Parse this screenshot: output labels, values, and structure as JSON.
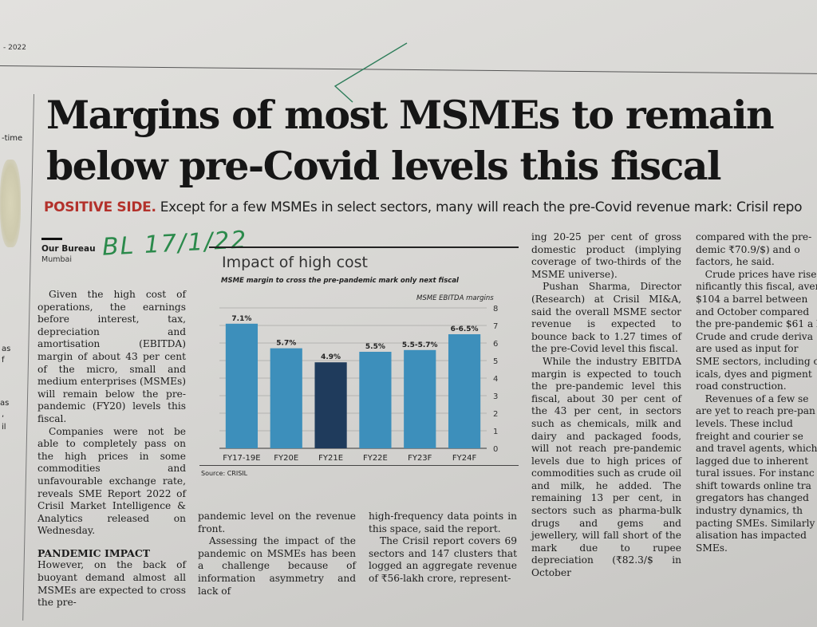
{
  "page": {
    "date_fragment": "- 2022",
    "side_words": [
      "-time",
      "as",
      "f",
      "as",
      ",",
      "il"
    ],
    "handwritten_note": "BL 17/1/22"
  },
  "article": {
    "headline_lines": [
      "Margins of most MSMEs to remain",
      "below pre-Covid levels this fiscal"
    ],
    "deck_kicker": "POSITIVE SIDE.",
    "deck_text": " Except for a few MSMEs in select sectors, many will reach the pre-Covid revenue mark: Crisil repo",
    "byline": "Our Bureau",
    "dateline": "Mumbai",
    "col1": {
      "paragraphs": [
        "Given the high cost of operations, the earnings before interest, tax, depreciation and amortisation (EBITDA) margin of about 43 per cent of the micro, small and medium enterprises (MSMEs) will remain below the pre-pandemic (FY20) levels this fiscal.",
        "Companies were not be able to completely pass on the high prices in some commodities and unfavourable exchange rate, reveals SME Report 2022 of Crisil Market Intelligence & Analytics released on Wednesday."
      ],
      "subhead": "PANDEMIC IMPACT",
      "after_subhead": "However, on the back of buoyant demand almost all MSMEs are expected to cross the pre-"
    },
    "col2": {
      "paragraphs": [
        "pandemic level on the revenue front.",
        "Assessing the impact of the pandemic on MSMEs has been a challenge because of information asymmetry and lack of"
      ]
    },
    "col3": {
      "paragraphs": [
        "high-frequency data points in this space, said the report.",
        "The Crisil report covers 69 sectors and 147 clusters that logged an aggregate revenue of ₹56-lakh crore, represent-"
      ]
    },
    "col4": {
      "paragraphs": [
        "ing 20-25 per cent of gross domestic product (implying coverage of two-thirds of the MSME universe).",
        "Pushan Sharma, Director (Research) at Crisil MI&A, said the overall MSME sector revenue is expected to bounce back to 1.27 times of the pre-Covid level this fiscal.",
        "While the industry EBITDA margin is expected to touch the pre-pandemic level this fiscal, about 30 per cent of the 43 per cent, in sectors such as chemicals, milk and dairy and packaged foods, will not reach pre-pandemic levels due to high prices of commodities such as crude oil and milk, he added. The remaining 13 per cent, in sectors such as pharma-bulk drugs and gems and jewellery, will fall short of the mark due to rupee depreciation (₹82.3/$ in October"
      ]
    },
    "col5": {
      "lines": [
        "compared with the pre-",
        "demic ₹70.9/$) and o",
        "factors, he said.",
        "   Crude prices have risen",
        "nificantly this fiscal, avera",
        "$104 a barrel between",
        "and October compared",
        "the pre-pandemic $61 a b",
        "Crude and crude deriva",
        "are used as input for",
        "SME sectors, including c",
        "icals, dyes and pigment",
        "road construction.",
        "   Revenues of a few se",
        "are yet to reach pre-pan",
        "levels. These includ",
        "freight and courier se",
        "and travel agents, which",
        "lagged due to inherent",
        "tural issues. For instanc",
        "shift towards online tra",
        "gregators has changed",
        "industry dynamics, th",
        "pacting SMEs. Similarly",
        "alisation has impacted",
        "SMEs."
      ]
    }
  },
  "chart_data": {
    "type": "bar",
    "title": "Impact of high cost",
    "subtitle": "MSME margin to cross the pre-pandemic mark only next fiscal",
    "ylabel": "MSME EBITDA margins",
    "xlabel": "",
    "categories": [
      "FY17-19E",
      "FY20E",
      "FY21E",
      "FY22E",
      "FY23F",
      "FY24F"
    ],
    "values": [
      7.1,
      5.7,
      4.9,
      5.5,
      5.6,
      6.5
    ],
    "data_labels": [
      "7.1%",
      "5.7%",
      "4.9%",
      "5.5%",
      "5.5-5.7%",
      "6-6.5%"
    ],
    "highlight_index": 2,
    "colors": {
      "bar": "#3d8fbb",
      "highlight": "#1f3b5c"
    },
    "ylim": [
      0,
      8
    ],
    "yticks": [
      0,
      1,
      2,
      3,
      4,
      5,
      6,
      7,
      8
    ],
    "y_axis_side": "right",
    "grid": true,
    "source": "Source: CRISIL"
  }
}
